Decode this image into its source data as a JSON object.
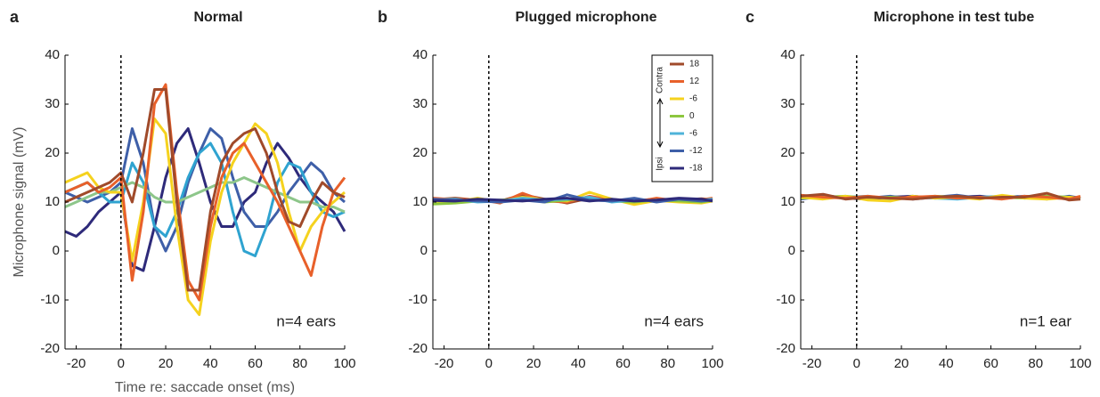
{
  "chart_data": [
    {
      "type": "line",
      "panel": "a",
      "title": "Normal",
      "annotation": "n=4 ears",
      "ylabel": "Microphone signal (mV)",
      "xlabel": "Time re: saccade onset (ms)",
      "xlim": [
        -25,
        100
      ],
      "ylim": [
        -20,
        40
      ],
      "xticks": [
        -20,
        0,
        20,
        40,
        60,
        80,
        100
      ],
      "yticks": [
        -20,
        -10,
        0,
        10,
        20,
        30,
        40
      ],
      "vline": 0,
      "x": [
        -25,
        -20,
        -15,
        -10,
        -5,
        0,
        5,
        10,
        15,
        20,
        25,
        30,
        35,
        40,
        45,
        50,
        55,
        60,
        65,
        70,
        75,
        80,
        85,
        90,
        95,
        100
      ],
      "series": [
        {
          "color": "#2e2a7a",
          "values": [
            4,
            3,
            5,
            8,
            10,
            12,
            -3,
            -4,
            5,
            15,
            22,
            25,
            18,
            10,
            5,
            5,
            10,
            12,
            18,
            22,
            19,
            15,
            12,
            10,
            8,
            4
          ]
        },
        {
          "color": "#3e5fa8",
          "values": [
            12,
            11,
            10,
            11,
            12,
            14,
            25,
            18,
            5,
            0,
            5,
            14,
            20,
            25,
            23,
            15,
            8,
            5,
            5,
            8,
            12,
            15,
            18,
            16,
            12,
            10
          ]
        },
        {
          "color": "#2fa3d0",
          "values": [
            12,
            13,
            14,
            12,
            10,
            10,
            18,
            14,
            5,
            3,
            8,
            15,
            20,
            22,
            18,
            8,
            0,
            -1,
            5,
            14,
            18,
            17,
            12,
            8,
            7,
            8
          ]
        },
        {
          "color": "#8dc68a",
          "values": [
            9,
            10,
            11,
            12,
            12,
            13,
            14,
            13,
            11,
            10,
            10,
            11,
            12,
            13,
            14,
            14,
            15,
            14,
            13,
            12,
            11,
            10,
            10,
            9,
            9,
            8
          ]
        },
        {
          "color": "#f5d21e",
          "values": [
            14,
            15,
            16,
            13,
            12,
            12,
            -2,
            10,
            27,
            24,
            5,
            -10,
            -13,
            2,
            12,
            18,
            22,
            26,
            24,
            18,
            8,
            0,
            5,
            8,
            10,
            12
          ]
        },
        {
          "color": "#e8602a",
          "values": [
            12,
            13,
            14,
            12,
            13,
            15,
            -6,
            8,
            30,
            34,
            12,
            -6,
            -10,
            5,
            15,
            20,
            22,
            18,
            14,
            10,
            5,
            0,
            -5,
            5,
            12,
            15
          ]
        },
        {
          "color": "#a04a2a",
          "values": [
            10,
            11,
            12,
            13,
            14,
            16,
            10,
            20,
            33,
            33,
            10,
            -8,
            -8,
            8,
            18,
            22,
            24,
            25,
            20,
            12,
            6,
            5,
            10,
            14,
            12,
            11
          ]
        }
      ]
    },
    {
      "type": "line",
      "panel": "b",
      "title": "Plugged microphone",
      "annotation": "n=4 ears",
      "xlim": [
        -25,
        100
      ],
      "ylim": [
        -20,
        40
      ],
      "xticks": [
        -20,
        0,
        20,
        40,
        60,
        80,
        100
      ],
      "yticks": [
        -20,
        -10,
        0,
        10,
        20,
        30,
        40
      ],
      "vline": 0,
      "legend": "upper right",
      "legend_top": "Contra",
      "legend_bottom": "Ipsi",
      "x": [
        -25,
        -15,
        -5,
        5,
        15,
        25,
        35,
        45,
        55,
        65,
        75,
        85,
        95,
        100
      ],
      "series": [
        {
          "name": "18",
          "color": "#a04a2a",
          "values": [
            10.5,
            10.8,
            10.4,
            10.2,
            11.5,
            10.6,
            9.8,
            10.8,
            10.5,
            10.3,
            10.6,
            10.4,
            10.7,
            10.5
          ]
        },
        {
          "name": "12",
          "color": "#e8602a",
          "values": [
            10.8,
            10.5,
            10.6,
            9.8,
            11.8,
            10.2,
            10.0,
            11.2,
            10.4,
            10.0,
            10.8,
            10.2,
            10.5,
            10.8
          ]
        },
        {
          "name": "-6",
          "color": "#f5d21e",
          "values": [
            10.2,
            10.0,
            10.8,
            10.0,
            11.0,
            10.5,
            10.2,
            12.0,
            10.6,
            9.5,
            10.3,
            10.0,
            9.8,
            10.2
          ]
        },
        {
          "name": "0",
          "color": "#8dc63f",
          "values": [
            9.6,
            9.8,
            10.2,
            10.4,
            10.6,
            10.0,
            10.4,
            10.8,
            10.2,
            10.0,
            10.4,
            10.2,
            10.0,
            10.3
          ]
        },
        {
          "name": "-6",
          "color": "#4fb3d9",
          "values": [
            10.4,
            10.6,
            10.0,
            10.2,
            10.8,
            10.4,
            10.6,
            11.0,
            10.0,
            10.4,
            10.2,
            10.6,
            10.4,
            10.6
          ]
        },
        {
          "name": "-12",
          "color": "#3e5fa8",
          "values": [
            10.6,
            10.4,
            10.2,
            10.0,
            10.4,
            10.0,
            11.5,
            10.4,
            10.2,
            10.8,
            10.0,
            10.6,
            10.2,
            10.4
          ]
        },
        {
          "name": "-18",
          "color": "#2e2a7a",
          "values": [
            10.3,
            10.2,
            10.6,
            10.4,
            10.2,
            10.6,
            10.8,
            10.2,
            10.6,
            10.2,
            10.4,
            10.8,
            10.6,
            10.2
          ]
        }
      ]
    },
    {
      "type": "line",
      "panel": "c",
      "title": "Microphone in test tube",
      "annotation": "n=1 ear",
      "xlim": [
        -25,
        100
      ],
      "ylim": [
        -20,
        40
      ],
      "xticks": [
        -20,
        0,
        20,
        40,
        60,
        80,
        100
      ],
      "yticks": [
        -20,
        -10,
        0,
        10,
        20,
        30,
        40
      ],
      "vline": 0,
      "x": [
        -25,
        -15,
        -5,
        5,
        15,
        25,
        35,
        45,
        55,
        65,
        75,
        85,
        95,
        100
      ],
      "series": [
        {
          "color": "#2e2a7a",
          "values": [
            11.0,
            11.4,
            10.8,
            10.6,
            11.0,
            11.2,
            10.8,
            11.0,
            11.2,
            10.8,
            11.0,
            11.2,
            10.8,
            11.0
          ]
        },
        {
          "color": "#3e5fa8",
          "values": [
            10.6,
            11.2,
            11.0,
            10.8,
            11.2,
            10.6,
            11.0,
            11.4,
            10.8,
            11.0,
            11.2,
            10.6,
            11.2,
            10.8
          ]
        },
        {
          "color": "#4fb3d9",
          "values": [
            11.2,
            10.8,
            11.0,
            11.2,
            10.6,
            11.0,
            10.8,
            10.6,
            11.0,
            11.2,
            10.8,
            11.0,
            10.6,
            11.0
          ]
        },
        {
          "color": "#8dc63f",
          "values": [
            10.8,
            11.0,
            11.2,
            10.8,
            11.0,
            10.8,
            11.2,
            11.0,
            10.8,
            11.0,
            10.8,
            11.2,
            11.0,
            10.8
          ]
        },
        {
          "color": "#f5d21e",
          "values": [
            11.0,
            10.6,
            11.2,
            10.4,
            10.2,
            11.2,
            10.8,
            11.0,
            10.6,
            11.4,
            10.8,
            10.6,
            11.0,
            10.8
          ]
        },
        {
          "color": "#e8602a",
          "values": [
            11.4,
            11.0,
            10.8,
            11.2,
            10.8,
            11.0,
            11.2,
            10.8,
            11.0,
            10.6,
            11.2,
            11.0,
            10.6,
            11.2
          ]
        },
        {
          "color": "#a04a2a",
          "values": [
            11.2,
            11.6,
            10.6,
            11.0,
            10.8,
            10.6,
            11.0,
            11.2,
            10.8,
            11.0,
            11.0,
            11.8,
            10.4,
            10.6
          ]
        }
      ]
    }
  ]
}
